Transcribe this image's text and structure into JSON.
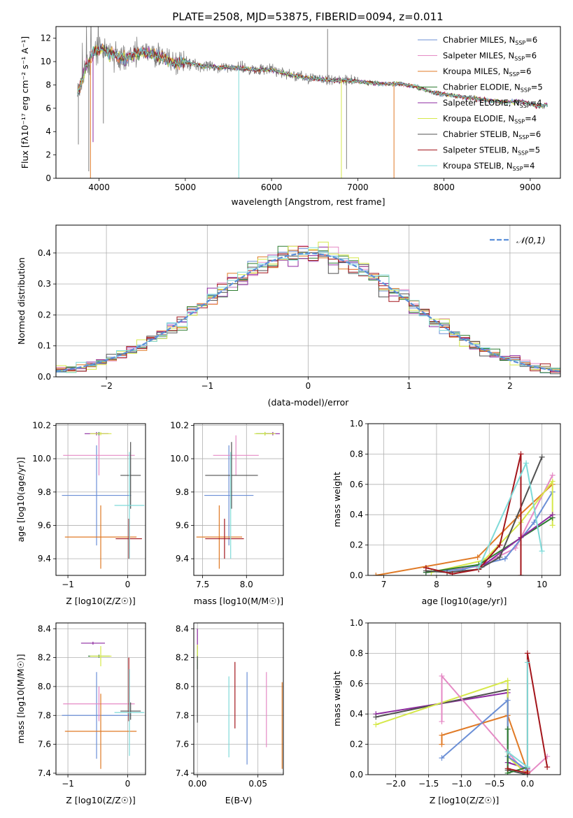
{
  "figure": {
    "title": "PLATE=2508, MJD=53875, FIBERID=0094, z=0.011"
  },
  "colors": {
    "chabrier_miles": "#6b8fd6",
    "salpeter_miles": "#e58ac5",
    "kroupa_miles": "#e07a26",
    "chabrier_elodie": "#2e7d32",
    "salpeter_elodie": "#8e2aa0",
    "kroupa_elodie": "#d6e84a",
    "chabrier_stelib": "#505050",
    "salpeter_stelib": "#a3151b",
    "kroupa_stelib": "#7fdad8",
    "data_grey": "#808080",
    "normal_curve": "#5b8fd9"
  },
  "chart_data": [
    {
      "id": "spectrum",
      "type": "line",
      "xlabel": "wavelength [Angstrom, rest frame]",
      "ylabel": "Flux [fλ10⁻¹⁷ erg cm⁻² s⁻¹ A⁻¹]",
      "xlim": [
        3500,
        9350
      ],
      "ylim": [
        0,
        13
      ],
      "xticks": [
        4000,
        5000,
        6000,
        7000,
        8000,
        9000
      ],
      "yticks": [
        0,
        2,
        4,
        6,
        8,
        10,
        12
      ],
      "grid": false,
      "legend_position": "top-right",
      "series_template": {
        "wavelength": [
          3750,
          3850,
          3950,
          4050,
          4150,
          4300,
          4500,
          4700,
          4860,
          5000,
          5200,
          5400,
          5600,
          5800,
          6000,
          6200,
          6400,
          6563,
          6700,
          6900,
          7100,
          7300,
          7500,
          7700,
          7900,
          8100,
          8300,
          8500,
          8700,
          8900,
          9100,
          9200
        ],
        "flux": [
          7.2,
          9.6,
          10.9,
          11.0,
          10.6,
          10.3,
          10.8,
          10.5,
          9.8,
          10.0,
          9.6,
          9.5,
          9.5,
          9.3,
          9.3,
          8.9,
          8.6,
          8.5,
          8.4,
          8.4,
          8.2,
          8.1,
          8.1,
          7.8,
          7.3,
          7.1,
          6.9,
          6.7,
          6.5,
          6.6,
          6.2,
          6.3
        ]
      },
      "series": [
        {
          "name": "Chabrier MILES, N_SSP=6",
          "label_main": "Chabrier MILES, N",
          "label_sub": "SSP",
          "label_end": "=6",
          "color_key": "chabrier_miles"
        },
        {
          "name": "Salpeter MILES, N_SSP=6",
          "label_main": "Salpeter MILES, N",
          "label_sub": "SSP",
          "label_end": "=6",
          "color_key": "salpeter_miles"
        },
        {
          "name": "Kroupa MILES, N_SSP=6",
          "label_main": "Kroupa MILES, N",
          "label_sub": "SSP",
          "label_end": "=6",
          "color_key": "kroupa_miles"
        },
        {
          "name": "Chabrier ELODIE, N_SSP=5",
          "label_main": "Chabrier ELODIE, N",
          "label_sub": "SSP",
          "label_end": "=5",
          "color_key": "chabrier_elodie"
        },
        {
          "name": "Salpeter ELODIE, N_SSP=4",
          "label_main": "Salpeter ELODIE, N",
          "label_sub": "SSP",
          "label_end": "=4",
          "color_key": "salpeter_elodie"
        },
        {
          "name": "Kroupa ELODIE, N_SSP=4",
          "label_main": "Kroupa ELODIE, N",
          "label_sub": "SSP",
          "label_end": "=4",
          "color_key": "kroupa_elodie"
        },
        {
          "name": "Chabrier STELIB, N_SSP=6",
          "label_main": "Chabrier STELIB, N",
          "label_sub": "SSP",
          "label_end": "=6",
          "color_key": "chabrier_stelib"
        },
        {
          "name": "Salpeter STELIB, N_SSP=5",
          "label_main": "Salpeter STELIB, N",
          "label_sub": "SSP",
          "label_end": "=5",
          "color_key": "salpeter_stelib"
        },
        {
          "name": "Kroupa STELIB, N_SSP=4",
          "label_main": "Kroupa STELIB, N",
          "label_sub": "SSP",
          "label_end": "=4",
          "color_key": "kroupa_stelib"
        }
      ],
      "spikes": [
        {
          "x": 3760,
          "y": 2.9,
          "color_key": "data_grey"
        },
        {
          "x": 3880,
          "y": 0.6,
          "color_key": "data_grey"
        },
        {
          "x": 3900,
          "y": 0.0,
          "color_key": "kroupa_miles"
        },
        {
          "x": 3930,
          "y": 3.1,
          "color_key": "salpeter_elodie"
        },
        {
          "x": 4050,
          "y": 4.7,
          "color_key": "data_grey"
        },
        {
          "x": 5620,
          "y": 0.0,
          "color_key": "kroupa_stelib"
        },
        {
          "x": 6650,
          "y": 12.8,
          "color_key": "data_grey"
        },
        {
          "x": 6810,
          "y": 0.0,
          "color_key": "kroupa_elodie"
        },
        {
          "x": 6870,
          "y": 0.8,
          "color_key": "data_grey"
        },
        {
          "x": 7420,
          "y": 0.0,
          "color_key": "kroupa_miles"
        }
      ]
    },
    {
      "id": "residuals",
      "type": "histogram",
      "xlabel": "(data-model)/error",
      "ylabel": "Normed distribution",
      "xlim": [
        -2.5,
        2.5
      ],
      "ylim": [
        0,
        0.49
      ],
      "xticks": [
        -2,
        -1,
        0,
        1,
        2
      ],
      "yticks": [
        0.0,
        0.1,
        0.2,
        0.3,
        0.4
      ],
      "grid": true,
      "legend_position": "top-right",
      "legend": "𝒩(0,1)",
      "bin_width": 0.1,
      "normal_curve": {
        "name": "N(0,1)",
        "mean": 0,
        "sd": 1,
        "color_key": "normal_curve"
      }
    },
    {
      "id": "age-vs-Z",
      "type": "errorbar",
      "xlabel": "Z [log10(Z/Z☉)]",
      "ylabel": "age [log10(age/yr)]",
      "xlim": [
        -1.2,
        0.3
      ],
      "ylim": [
        9.3,
        10.21
      ],
      "xticks": [
        -1,
        0
      ],
      "yticks": [
        9.4,
        9.6,
        9.8,
        10.0,
        10.2
      ],
      "grid": true,
      "points": [
        {
          "color_key": "chabrier_miles",
          "x": -0.52,
          "y": 9.78,
          "xerr": 0.58,
          "yerr": 0.3
        },
        {
          "color_key": "salpeter_miles",
          "x": -0.48,
          "y": 10.02,
          "xerr": 0.6,
          "yerr": 0.12
        },
        {
          "color_key": "kroupa_miles",
          "x": -0.45,
          "y": 9.53,
          "xerr": 0.6,
          "yerr": 0.19
        },
        {
          "color_key": "chabrier_elodie",
          "x": -0.48,
          "y": 10.15,
          "xerr": 0.0,
          "yerr": 0.01
        },
        {
          "color_key": "salpeter_elodie",
          "x": -0.52,
          "y": 10.15,
          "xerr": 0.2,
          "yerr": 0.01
        },
        {
          "color_key": "kroupa_elodie",
          "x": -0.45,
          "y": 10.15,
          "xerr": 0.18,
          "yerr": 0.01
        },
        {
          "color_key": "chabrier_stelib",
          "x": 0.05,
          "y": 9.9,
          "xerr": 0.17,
          "yerr": 0.2
        },
        {
          "color_key": "salpeter_stelib",
          "x": 0.02,
          "y": 9.52,
          "xerr": 0.22,
          "yerr": 0.12
        },
        {
          "color_key": "kroupa_stelib",
          "x": 0.03,
          "y": 9.72,
          "xerr": 0.25,
          "yerr": 0.32
        }
      ]
    },
    {
      "id": "age-vs-mass",
      "type": "errorbar",
      "xlabel": "mass [log10(M/M☉)]",
      "ylabel": "",
      "xlim": [
        7.4,
        8.42
      ],
      "ylim": [
        9.3,
        10.21
      ],
      "xticks": [
        7.5,
        8.0
      ],
      "yticks": [
        9.4,
        9.6,
        9.8,
        10.0,
        10.2
      ],
      "grid": true,
      "points": [
        {
          "color_key": "chabrier_miles",
          "x": 7.8,
          "y": 9.78,
          "xerr": 0.28,
          "yerr": 0.3
        },
        {
          "color_key": "salpeter_miles",
          "x": 7.88,
          "y": 10.02,
          "xerr": 0.26,
          "yerr": 0.12
        },
        {
          "color_key": "kroupa_miles",
          "x": 7.69,
          "y": 9.53,
          "xerr": 0.26,
          "yerr": 0.19
        },
        {
          "color_key": "chabrier_elodie",
          "x": 8.21,
          "y": 10.15,
          "xerr": 0.1,
          "yerr": 0.01
        },
        {
          "color_key": "salpeter_elodie",
          "x": 8.3,
          "y": 10.15,
          "xerr": 0.08,
          "yerr": 0.01
        },
        {
          "color_key": "kroupa_elodie",
          "x": 8.21,
          "y": 10.15,
          "xerr": 0.12,
          "yerr": 0.01
        },
        {
          "color_key": "chabrier_stelib",
          "x": 7.83,
          "y": 9.9,
          "xerr": 0.3,
          "yerr": 0.2
        },
        {
          "color_key": "salpeter_stelib",
          "x": 7.75,
          "y": 9.52,
          "xerr": 0.22,
          "yerr": 0.12
        },
        {
          "color_key": "kroupa_stelib",
          "x": 7.82,
          "y": 9.72,
          "xerr": 0.0,
          "yerr": 0.32
        }
      ]
    },
    {
      "id": "weight-vs-age",
      "type": "line",
      "xlabel": "age [log10(age/yr)]",
      "ylabel": "mass weight",
      "xlim": [
        6.7,
        10.35
      ],
      "ylim": [
        0,
        1.0
      ],
      "xticks": [
        7,
        8,
        9,
        10
      ],
      "yticks": [
        0.0,
        0.2,
        0.4,
        0.6,
        0.8,
        1.0
      ],
      "grid": true,
      "series": [
        {
          "color_key": "kroupa_miles",
          "x": [
            6.85,
            8.78,
            9.55,
            10.2
          ],
          "y": [
            0.0,
            0.12,
            0.39,
            0.6
          ]
        },
        {
          "color_key": "salpeter_miles",
          "x": [
            7.8,
            8.8,
            9.5,
            10.2
          ],
          "y": [
            0.02,
            0.06,
            0.18,
            0.66
          ]
        },
        {
          "color_key": "chabrier_miles",
          "x": [
            7.8,
            8.5,
            9.3,
            9.85,
            10.2
          ],
          "y": [
            0.02,
            0.04,
            0.11,
            0.35,
            0.55
          ]
        },
        {
          "color_key": "kroupa_elodie",
          "x": [
            7.9,
            8.9,
            9.6,
            10.2,
            10.2
          ],
          "y": [
            0.02,
            0.1,
            0.35,
            0.62,
            0.33
          ]
        },
        {
          "color_key": "chabrier_elodie",
          "x": [
            7.8,
            8.8,
            10.2
          ],
          "y": [
            0.02,
            0.07,
            0.38
          ]
        },
        {
          "color_key": "salpeter_elodie",
          "x": [
            8.9,
            9.6,
            10.2
          ],
          "y": [
            0.07,
            0.25,
            0.4
          ]
        },
        {
          "color_key": "chabrier_stelib",
          "x": [
            7.8,
            8.2,
            8.8,
            9.2,
            10.0
          ],
          "y": [
            0.03,
            0.02,
            0.04,
            0.12,
            0.78
          ]
        },
        {
          "color_key": "salpeter_stelib",
          "x": [
            7.8,
            8.3,
            8.8,
            9.2,
            9.6,
            9.6
          ],
          "y": [
            0.05,
            0.01,
            0.04,
            0.2,
            0.8,
            0.0
          ]
        },
        {
          "color_key": "kroupa_stelib",
          "x": [
            8.8,
            9.7,
            10.0
          ],
          "y": [
            0.05,
            0.74,
            0.16
          ]
        }
      ]
    },
    {
      "id": "mass-vs-Z",
      "type": "errorbar",
      "xlabel": "Z [log10(Z/Z☉)]",
      "ylabel": "mass [log10(M/M☉)]",
      "xlim": [
        -1.2,
        0.3
      ],
      "ylim": [
        7.39,
        8.44
      ],
      "xticks": [
        -1,
        0
      ],
      "yticks": [
        7.4,
        7.6,
        7.8,
        8.0,
        8.2,
        8.4
      ],
      "grid": true,
      "points": [
        {
          "color_key": "chabrier_miles",
          "x": -0.52,
          "y": 7.8,
          "xerr": 0.58,
          "yerr": 0.3
        },
        {
          "color_key": "salpeter_miles",
          "x": -0.48,
          "y": 7.88,
          "xerr": 0.6,
          "yerr": 0.12
        },
        {
          "color_key": "kroupa_miles",
          "x": -0.45,
          "y": 7.69,
          "xerr": 0.6,
          "yerr": 0.26
        },
        {
          "color_key": "chabrier_elodie",
          "x": -0.48,
          "y": 8.21,
          "xerr": 0.18,
          "yerr": 0.01
        },
        {
          "color_key": "salpeter_elodie",
          "x": -0.58,
          "y": 8.3,
          "xerr": 0.2,
          "yerr": 0.01
        },
        {
          "color_key": "kroupa_elodie",
          "x": -0.45,
          "y": 8.21,
          "xerr": 0.18,
          "yerr": 0.07
        },
        {
          "color_key": "chabrier_stelib",
          "x": 0.05,
          "y": 7.83,
          "xerr": 0.17,
          "yerr": 0.06
        },
        {
          "color_key": "salpeter_stelib",
          "x": 0.02,
          "y": 7.98,
          "xerr": 0.0,
          "yerr": 0.22
        },
        {
          "color_key": "kroupa_stelib",
          "x": 0.03,
          "y": 7.82,
          "xerr": 0.25,
          "yerr": 0.3
        }
      ]
    },
    {
      "id": "mass-vs-ebv",
      "type": "errorbar",
      "xlabel": "E(B-V)",
      "ylabel": "",
      "xlim": [
        -0.003,
        0.071
      ],
      "ylim": [
        7.39,
        8.44
      ],
      "xticks": [
        0.0,
        0.05
      ],
      "yticks": [
        7.4,
        7.6,
        7.8,
        8.0,
        8.2,
        8.4
      ],
      "grid": true,
      "points": [
        {
          "color_key": "chabrier_miles",
          "x": 0.041,
          "y": 7.78,
          "xerr": 0,
          "yerr": 0.32
        },
        {
          "color_key": "salpeter_miles",
          "x": 0.057,
          "y": 7.84,
          "xerr": 0,
          "yerr": 0.26
        },
        {
          "color_key": "kroupa_miles",
          "x": 0.07,
          "y": 7.73,
          "xerr": 0,
          "yerr": 0.3
        },
        {
          "color_key": "chabrier_elodie",
          "x": 0.0,
          "y": 8.2,
          "xerr": 0,
          "yerr": 0.08
        },
        {
          "color_key": "salpeter_elodie",
          "x": 0.0,
          "y": 8.33,
          "xerr": 0,
          "yerr": 0.07
        },
        {
          "color_key": "kroupa_elodie",
          "x": 0.0,
          "y": 8.24,
          "xerr": 0,
          "yerr": 0.05
        },
        {
          "color_key": "chabrier_stelib",
          "x": 0.0,
          "y": 7.98,
          "xerr": 0,
          "yerr": 0.23
        },
        {
          "color_key": "salpeter_stelib",
          "x": 0.031,
          "y": 7.94,
          "xerr": 0,
          "yerr": 0.23
        },
        {
          "color_key": "kroupa_stelib",
          "x": 0.026,
          "y": 7.79,
          "xerr": 0,
          "yerr": 0.28
        }
      ]
    },
    {
      "id": "weight-vs-Z",
      "type": "line",
      "xlabel": "Z [log10(Z/Z☉)]",
      "ylabel": "mass weight",
      "xlim": [
        -2.42,
        0.5
      ],
      "ylim": [
        0,
        1.0
      ],
      "xticks": [
        -2.0,
        -1.5,
        -1.0,
        -0.5,
        0.0
      ],
      "yticks": [
        0.0,
        0.2,
        0.4,
        0.6,
        0.8,
        1.0
      ],
      "grid": true,
      "series": [
        {
          "color_key": "salpeter_elodie",
          "x": [
            -2.3,
            -0.3,
            -0.3,
            0.0
          ],
          "y": [
            0.4,
            0.54,
            0.08,
            0.04
          ]
        },
        {
          "color_key": "chabrier_stelib",
          "x": [
            -2.3,
            -0.3,
            -0.3,
            0.0
          ],
          "y": [
            0.38,
            0.56,
            0.03,
            0.0
          ]
        },
        {
          "color_key": "kroupa_elodie",
          "x": [
            -2.3,
            -0.3,
            -0.3,
            0.0
          ],
          "y": [
            0.33,
            0.62,
            0.12,
            0.0
          ]
        },
        {
          "color_key": "salpeter_miles",
          "x": [
            -1.3,
            -1.3,
            -0.3,
            0.0,
            0.3
          ],
          "y": [
            0.35,
            0.65,
            0.15,
            0.0,
            0.12
          ]
        },
        {
          "color_key": "kroupa_miles",
          "x": [
            -1.3,
            -1.3,
            -0.3,
            0.0
          ],
          "y": [
            0.2,
            0.26,
            0.39,
            0.02
          ]
        },
        {
          "color_key": "chabrier_miles",
          "x": [
            -1.3,
            -0.3,
            -0.3,
            0.0
          ],
          "y": [
            0.11,
            0.49,
            0.12,
            0.03
          ]
        },
        {
          "color_key": "chabrier_elodie",
          "x": [
            -0.3,
            -0.3,
            0.0,
            0.0
          ],
          "y": [
            0.3,
            0.01,
            0.05,
            0.0
          ]
        },
        {
          "color_key": "salpeter_stelib",
          "x": [
            -0.3,
            0.0,
            0.0,
            0.3
          ],
          "y": [
            0.04,
            0.01,
            0.8,
            0.05
          ]
        },
        {
          "color_key": "kroupa_stelib",
          "x": [
            -0.3,
            0.0,
            0.0
          ],
          "y": [
            0.15,
            0.05,
            0.74
          ]
        }
      ]
    }
  ]
}
